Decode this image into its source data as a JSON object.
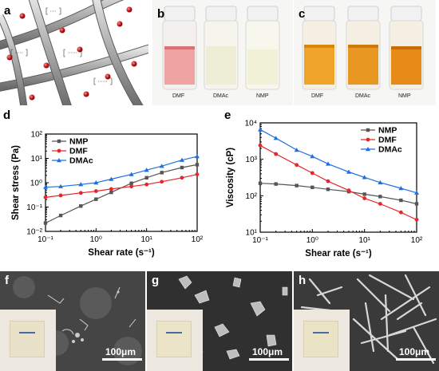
{
  "panels": {
    "a": {
      "label": "a"
    },
    "b": {
      "label": "b",
      "vials": [
        "DMF",
        "DMAc",
        "NMP"
      ]
    },
    "c": {
      "label": "c",
      "vials": [
        "DMF",
        "DMAc",
        "NMP"
      ]
    },
    "d": {
      "label": "d"
    },
    "e": {
      "label": "e"
    },
    "f": {
      "label": "f",
      "scale": "100μm"
    },
    "g": {
      "label": "g",
      "scale": "100μm"
    },
    "h": {
      "label": "h",
      "scale": "100μm"
    }
  },
  "chart_data": [
    {
      "panel": "d",
      "type": "line",
      "xscale": "log",
      "yscale": "log",
      "xlabel": "Shear rate (s⁻¹)",
      "ylabel": "Shear stress (Pa)",
      "xlim": [
        0.1,
        100
      ],
      "ylim": [
        0.01,
        100
      ],
      "xticks": [
        "10⁻¹",
        "10⁰",
        "10¹",
        "10²"
      ],
      "yticks": [
        "10⁻²",
        "10⁻¹",
        "10⁰",
        "10¹",
        "10²"
      ],
      "legend": "top-left",
      "series": [
        {
          "name": "NMP",
          "color": "#555555",
          "marker": "square",
          "x": [
            0.1,
            0.2,
            0.5,
            1,
            2,
            5,
            10,
            20,
            50,
            100
          ],
          "y": [
            0.022,
            0.045,
            0.11,
            0.21,
            0.4,
            0.95,
            1.6,
            2.6,
            4.2,
            5.5
          ]
        },
        {
          "name": "DMF",
          "color": "#e8262a",
          "marker": "circle",
          "x": [
            0.1,
            0.2,
            0.5,
            1,
            2,
            5,
            10,
            20,
            50,
            100
          ],
          "y": [
            0.25,
            0.3,
            0.38,
            0.45,
            0.55,
            0.7,
            0.85,
            1.1,
            1.6,
            2.2
          ]
        },
        {
          "name": "DMAc",
          "color": "#1e6fe0",
          "marker": "triangle",
          "x": [
            0.1,
            0.2,
            0.5,
            1,
            2,
            5,
            10,
            20,
            50,
            100
          ],
          "y": [
            0.65,
            0.7,
            0.85,
            1.0,
            1.4,
            2.2,
            3.3,
            4.8,
            8.5,
            12
          ]
        }
      ]
    },
    {
      "panel": "e",
      "type": "line",
      "xscale": "log",
      "yscale": "log",
      "xlabel": "Shear rate (s⁻¹)",
      "ylabel": "Viscosity (cP)",
      "xlim": [
        0.1,
        100
      ],
      "ylim": [
        10,
        10000
      ],
      "xticks": [
        "10⁻¹",
        "10⁰",
        "10¹",
        "10²"
      ],
      "yticks": [
        "10¹",
        "10²",
        "10³",
        "10⁴"
      ],
      "legend": "top-right",
      "series": [
        {
          "name": "NMP",
          "color": "#555555",
          "marker": "square",
          "x": [
            0.1,
            0.2,
            0.5,
            1,
            2,
            5,
            10,
            20,
            50,
            100
          ],
          "y": [
            220,
            210,
            190,
            170,
            150,
            130,
            110,
            95,
            75,
            60
          ]
        },
        {
          "name": "DMF",
          "color": "#e8262a",
          "marker": "circle",
          "x": [
            0.1,
            0.2,
            0.5,
            1,
            2,
            5,
            10,
            20,
            50,
            100
          ],
          "y": [
            2400,
            1400,
            700,
            420,
            250,
            140,
            85,
            60,
            35,
            22
          ]
        },
        {
          "name": "DMAc",
          "color": "#1e6fe0",
          "marker": "triangle",
          "x": [
            0.1,
            0.2,
            0.5,
            1,
            2,
            5,
            10,
            20,
            50,
            100
          ],
          "y": [
            6500,
            3800,
            1800,
            1200,
            750,
            450,
            320,
            230,
            160,
            120
          ]
        }
      ]
    }
  ]
}
